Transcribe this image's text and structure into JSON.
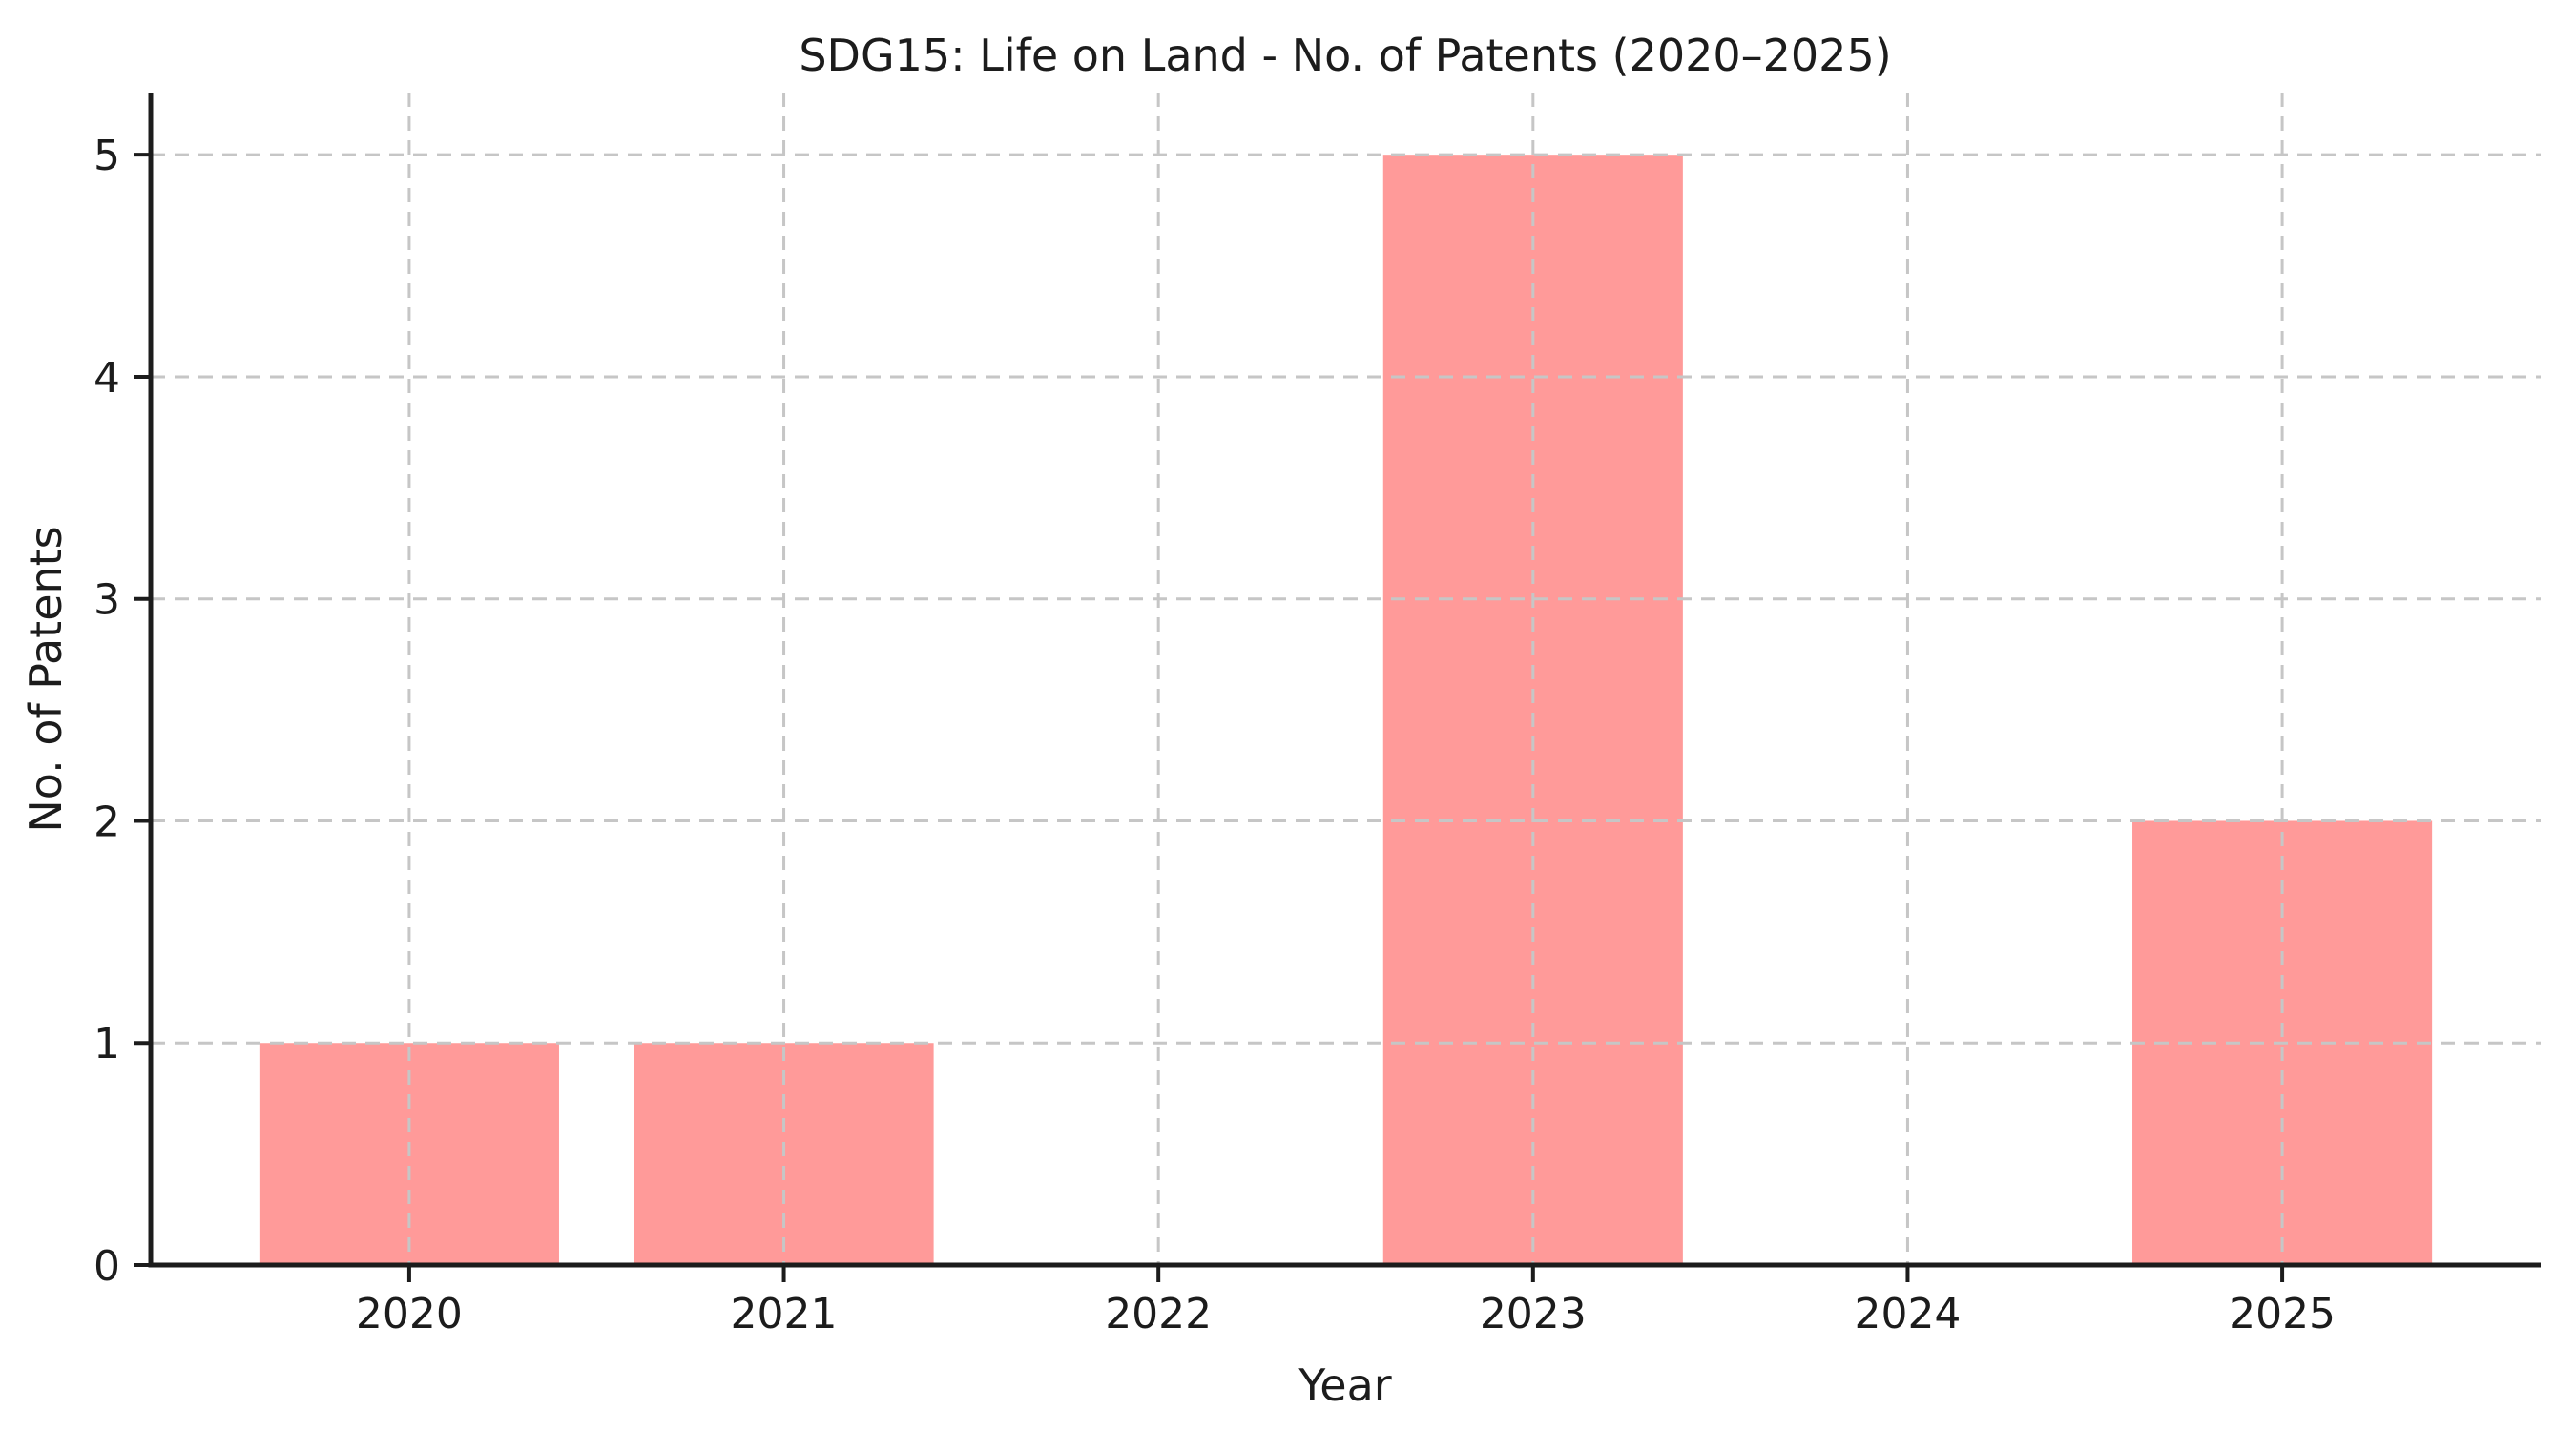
{
  "chart_data": {
    "type": "bar",
    "title": "SDG15: Life on Land - No. of Patents (2020–2025)",
    "xlabel": "Year",
    "ylabel": "No. of Patents",
    "categories": [
      "2020",
      "2021",
      "2022",
      "2023",
      "2024",
      "2025"
    ],
    "values": [
      1,
      1,
      0,
      5,
      0,
      2
    ],
    "yticks": [
      0,
      1,
      2,
      3,
      4,
      5
    ],
    "ylim": [
      0,
      5.28
    ],
    "bar_color": "#ff9a99",
    "grid": true,
    "grid_style": "dashed",
    "grid_color": "#c6c6c6",
    "axis_color": "#1c1c1c",
    "text_color": "#1c1c1c",
    "background": "#ffffff",
    "legend_position": "none"
  }
}
